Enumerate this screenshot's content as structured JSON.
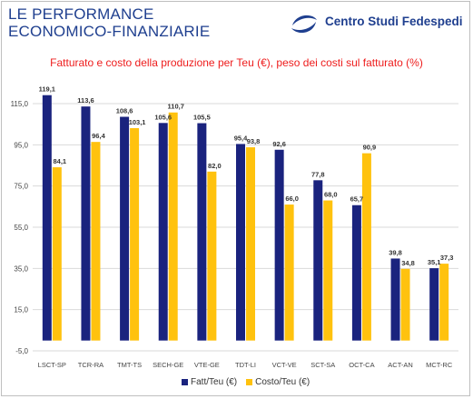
{
  "header": {
    "title_line1": "LE PERFORMANCE",
    "title_line2": "ECONOMICO-FINANZIARIE",
    "brand": "Centro Studi Fedespedi"
  },
  "colors": {
    "series1": "#1a237e",
    "series2": "#ffc20e",
    "title": "#1f3f8f",
    "subtitle": "#ee1c1c",
    "grid": "#d9d9d9"
  },
  "chart_data": {
    "type": "bar",
    "title": "Fatturato e costo della produzione per Teu (€),  peso dei costi sul fatturato (%)",
    "categories": [
      "LSCT-SP",
      "TCR-RA",
      "TMT-TS",
      "SECH-GE",
      "VTE-GE",
      "TDT-LI",
      "VCT-VE",
      "SCT-SA",
      "OCT-CA",
      "ACT-AN",
      "MCT-RC"
    ],
    "series": [
      {
        "name": "Fatt/Teu (€)",
        "values": [
          119.1,
          113.6,
          108.6,
          105.6,
          105.5,
          95.4,
          92.6,
          77.8,
          65.7,
          39.8,
          35.1
        ]
      },
      {
        "name": "Costo/Teu (€)",
        "values": [
          84.1,
          96.4,
          103.1,
          110.7,
          82.0,
          93.8,
          66.0,
          68.0,
          90.9,
          34.8,
          37.3
        ]
      }
    ],
    "yticks": [
      "115,0",
      "95,0",
      "75,0",
      "55,0",
      "35,0",
      "15,0",
      "-5,0"
    ],
    "ylim": [
      -5,
      125
    ],
    "grid": true,
    "legend": "bottom"
  }
}
